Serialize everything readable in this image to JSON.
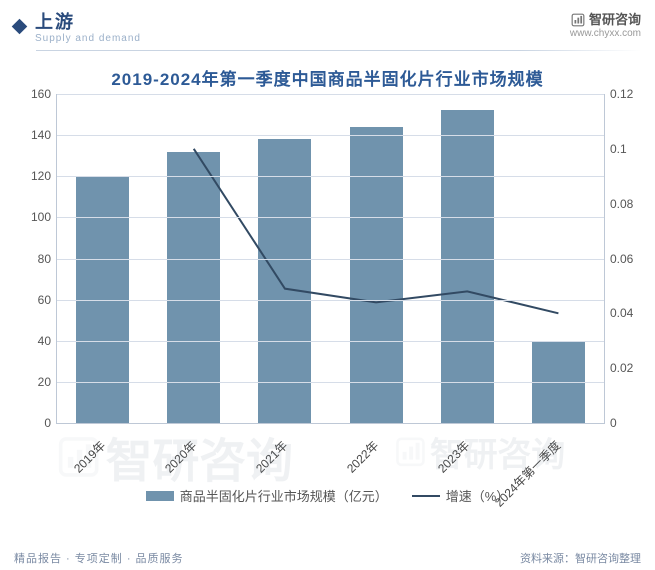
{
  "header": {
    "category": "上游",
    "sub_en": "Supply and demand",
    "brand_name": "智研咨询",
    "brand_url": "www.chyxx.com"
  },
  "chart": {
    "type": "bar+line",
    "title": "2019-2024年第一季度中国商品半固化片行业市场规模",
    "categories": [
      "2019年",
      "2020年",
      "2021年",
      "2022年",
      "2023年",
      "2024年第一季度"
    ],
    "bar_series": {
      "label": "商品半固化片行业市场规模（亿元）",
      "values": [
        120,
        132,
        138,
        144,
        152,
        40
      ],
      "color": "#7093ad"
    },
    "line_series": {
      "label": "增速（%）",
      "values": [
        null,
        0.1,
        0.049,
        0.044,
        0.048,
        0.04
      ],
      "color": "#324a63",
      "line_width": 2
    },
    "y_left": {
      "min": 0,
      "max": 160,
      "step": 20
    },
    "y_right": {
      "min": 0,
      "max": 0.12,
      "step": 0.02
    },
    "background_color": "#ffffff",
    "grid_color": "#d6dde8",
    "bar_width_ratio": 0.58,
    "title_fontsize": 17,
    "tick_fontsize": 12,
    "title_color": "#2d5a96"
  },
  "legend": {
    "bar_label": "商品半固化片行业市场规模（亿元）",
    "line_label": "增速（%）"
  },
  "footer": {
    "left": "精品报告 · 专项定制 · 品质服务",
    "right": "资料来源：智研咨询整理"
  },
  "watermark": "智研咨询"
}
